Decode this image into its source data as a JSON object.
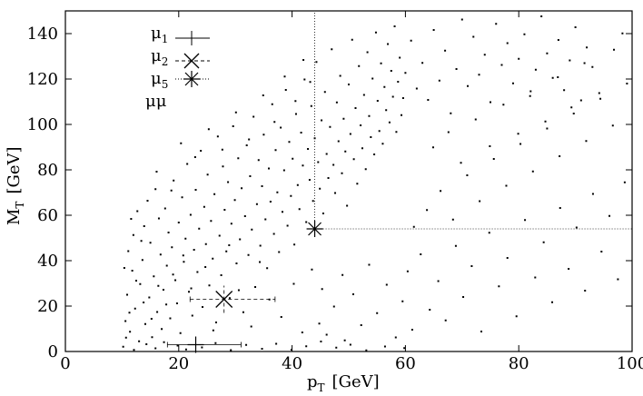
{
  "chart_data": {
    "type": "scatter",
    "title": "",
    "xlabel_main": "p",
    "xlabel_sub": "T",
    "xlabel_unit": "[GeV]",
    "ylabel_main": "M",
    "ylabel_sub": "T",
    "ylabel_unit": "[GeV]",
    "xlim": [
      0,
      100
    ],
    "ylim": [
      0,
      150
    ],
    "xticks": [
      0,
      20,
      40,
      60,
      80,
      100
    ],
    "yticks": [
      0,
      20,
      40,
      60,
      80,
      100,
      120,
      140
    ],
    "grid": false,
    "legend_position": "top-left",
    "legend": [
      {
        "label": "μ",
        "sub": "1",
        "marker": "plus",
        "line": "solid"
      },
      {
        "label": "μ",
        "sub": "2",
        "marker": "cross",
        "line": "dashed"
      },
      {
        "label": "μ",
        "sub": "5",
        "marker": "star",
        "line": "dotted"
      },
      {
        "label": "μμ",
        "sub": "",
        "marker": "dot",
        "line": "none"
      }
    ],
    "highlighted_points": [
      {
        "series": "μ1",
        "x": 23,
        "y": 3,
        "xerr": [
          18,
          31
        ],
        "yerr": [
          1,
          6
        ],
        "marker": "plus",
        "line": "solid"
      },
      {
        "series": "μ2",
        "x": 28,
        "y": 23,
        "xerr": [
          22,
          37
        ],
        "yerr": [
          17,
          29
        ],
        "marker": "cross",
        "line": "dashed"
      },
      {
        "series": "μ5",
        "x": 44,
        "y": 54,
        "xerr": [
          44,
          100
        ],
        "yerr": [
          54,
          150
        ],
        "marker": "star",
        "line": "dotted"
      }
    ],
    "scatter_points": [
      [
        10.2,
        2.1
      ],
      [
        10.6,
        13.4
      ],
      [
        10.9,
        25.0
      ],
      [
        11.1,
        44.2
      ],
      [
        11.4,
        8.7
      ],
      [
        11.8,
        35.6
      ],
      [
        12.0,
        51.3
      ],
      [
        12.3,
        18.9
      ],
      [
        12.7,
        61.8
      ],
      [
        13.0,
        4.5
      ],
      [
        13.2,
        29.7
      ],
      [
        13.6,
        40.3
      ],
      [
        13.9,
        55.2
      ],
      [
        14.1,
        12.1
      ],
      [
        14.5,
        66.4
      ],
      [
        14.8,
        23.8
      ],
      [
        15.0,
        47.9
      ],
      [
        15.3,
        6.3
      ],
      [
        15.6,
        33.1
      ],
      [
        15.9,
        71.5
      ],
      [
        16.2,
        17.4
      ],
      [
        16.5,
        58.6
      ],
      [
        16.8,
        42.7
      ],
      [
        17.0,
        9.9
      ],
      [
        17.3,
        27.2
      ],
      [
        17.6,
        63.0
      ],
      [
        17.9,
        37.8
      ],
      [
        18.2,
        52.4
      ],
      [
        18.5,
        14.6
      ],
      [
        18.8,
        45.9
      ],
      [
        19.1,
        75.3
      ],
      [
        19.4,
        31.4
      ],
      [
        19.7,
        21.2
      ],
      [
        20.0,
        56.8
      ],
      [
        20.3,
        8.1
      ],
      [
        20.6,
        67.9
      ],
      [
        20.9,
        39.5
      ],
      [
        21.2,
        49.7
      ],
      [
        21.5,
        82.6
      ],
      [
        21.8,
        26.3
      ],
      [
        22.1,
        60.2
      ],
      [
        22.4,
        15.8
      ],
      [
        22.7,
        44.8
      ],
      [
        23.0,
        71.2
      ],
      [
        23.3,
        35.0
      ],
      [
        23.6,
        54.1
      ],
      [
        23.9,
        88.4
      ],
      [
        24.2,
        19.6
      ],
      [
        24.5,
        63.7
      ],
      [
        24.8,
        47.3
      ],
      [
        25.1,
        77.9
      ],
      [
        25.4,
        29.1
      ],
      [
        25.7,
        57.5
      ],
      [
        26.0,
        40.9
      ],
      [
        26.3,
        69.3
      ],
      [
        26.6,
        12.8
      ],
      [
        26.9,
        94.7
      ],
      [
        27.2,
        51.0
      ],
      [
        27.5,
        33.6
      ],
      [
        27.8,
        81.5
      ],
      [
        28.1,
        62.4
      ],
      [
        28.4,
        44.1
      ],
      [
        28.7,
        74.6
      ],
      [
        29.0,
        23.5
      ],
      [
        29.3,
        56.3
      ],
      [
        29.6,
        99.2
      ],
      [
        29.9,
        66.7
      ],
      [
        30.2,
        38.8
      ],
      [
        30.5,
        85.1
      ],
      [
        30.8,
        49.4
      ],
      [
        31.1,
        71.9
      ],
      [
        31.4,
        17.3
      ],
      [
        31.7,
        59.6
      ],
      [
        32.0,
        90.8
      ],
      [
        32.3,
        42.5
      ],
      [
        32.6,
        77.2
      ],
      [
        32.9,
        53.7
      ],
      [
        33.2,
        103.4
      ],
      [
        33.5,
        28.4
      ],
      [
        33.8,
        64.9
      ],
      [
        34.1,
        84.3
      ],
      [
        34.4,
        46.6
      ],
      [
        34.7,
        72.8
      ],
      [
        35.0,
        95.5
      ],
      [
        35.3,
        58.2
      ],
      [
        35.6,
        36.7
      ],
      [
        35.9,
        80.6
      ],
      [
        36.2,
        66.0
      ],
      [
        36.5,
        108.9
      ],
      [
        36.8,
        51.8
      ],
      [
        37.1,
        88.7
      ],
      [
        37.4,
        70.1
      ],
      [
        37.7,
        43.8
      ],
      [
        38.0,
        98.6
      ],
      [
        38.3,
        61.5
      ],
      [
        38.6,
        79.8
      ],
      [
        38.9,
        115.2
      ],
      [
        39.2,
        55.4
      ],
      [
        39.5,
        92.3
      ],
      [
        39.8,
        68.5
      ],
      [
        40.1,
        84.9
      ],
      [
        40.4,
        47.1
      ],
      [
        40.7,
        104.6
      ],
      [
        41.0,
        73.3
      ],
      [
        41.3,
        62.7
      ],
      [
        41.6,
        96.4
      ],
      [
        41.9,
        81.9
      ],
      [
        42.2,
        119.8
      ],
      [
        42.5,
        57.0
      ],
      [
        42.8,
        89.2
      ],
      [
        43.1,
        75.6
      ],
      [
        43.4,
        108.1
      ],
      [
        43.7,
        66.3
      ],
      [
        44.0,
        93.9
      ],
      [
        44.3,
        127.5
      ],
      [
        44.6,
        83.4
      ],
      [
        44.9,
        71.7
      ],
      [
        45.2,
        101.8
      ],
      [
        45.5,
        60.8
      ],
      [
        45.8,
        114.3
      ],
      [
        46.1,
        87.0
      ],
      [
        46.4,
        76.4
      ],
      [
        46.7,
        98.9
      ],
      [
        47.0,
        133.1
      ],
      [
        47.3,
        82.2
      ],
      [
        47.6,
        69.8
      ],
      [
        47.9,
        109.7
      ],
      [
        48.2,
        92.6
      ],
      [
        48.5,
        121.4
      ],
      [
        48.8,
        78.5
      ],
      [
        49.1,
        102.5
      ],
      [
        49.4,
        88.1
      ],
      [
        49.7,
        64.2
      ],
      [
        50.0,
        117.6
      ],
      [
        50.3,
        95.8
      ],
      [
        50.6,
        137.3
      ],
      [
        50.9,
        84.7
      ],
      [
        51.2,
        107.2
      ],
      [
        51.5,
        73.9
      ],
      [
        51.8,
        125.7
      ],
      [
        52.1,
        99.6
      ],
      [
        52.4,
        89.5
      ],
      [
        52.7,
        113.0
      ],
      [
        53.0,
        80.3
      ],
      [
        53.3,
        131.8
      ],
      [
        53.6,
        103.7
      ],
      [
        53.9,
        94.4
      ],
      [
        54.2,
        120.2
      ],
      [
        54.5,
        86.8
      ],
      [
        54.8,
        140.5
      ],
      [
        55.1,
        110.4
      ],
      [
        55.4,
        97.1
      ],
      [
        55.7,
        126.9
      ],
      [
        56.0,
        91.5
      ],
      [
        56.3,
        116.5
      ],
      [
        56.6,
        106.3
      ],
      [
        56.9,
        135.4
      ],
      [
        57.2,
        100.9
      ],
      [
        57.5,
        123.6
      ],
      [
        57.8,
        112.2
      ],
      [
        58.1,
        143.2
      ],
      [
        58.4,
        96.7
      ],
      [
        58.7,
        118.8
      ],
      [
        59.0,
        129.4
      ],
      [
        59.3,
        104.1
      ],
      [
        59.6,
        111.6
      ],
      [
        60.0,
        122.7
      ],
      [
        61.0,
        136.9
      ],
      [
        62.0,
        115.8
      ],
      [
        63.0,
        127.1
      ],
      [
        64.0,
        110.8
      ],
      [
        65.0,
        141.6
      ],
      [
        66.0,
        119.3
      ],
      [
        67.0,
        132.5
      ],
      [
        68.0,
        104.9
      ],
      [
        69.0,
        124.4
      ],
      [
        70.0,
        146.2
      ],
      [
        71.0,
        116.9
      ],
      [
        72.0,
        138.6
      ],
      [
        73.0,
        121.9
      ],
      [
        74.0,
        130.7
      ],
      [
        75.0,
        109.8
      ],
      [
        76.0,
        144.3
      ],
      [
        77.0,
        126.2
      ],
      [
        78.0,
        135.8
      ],
      [
        79.0,
        118.1
      ],
      [
        80.0,
        128.9
      ],
      [
        81.0,
        139.7
      ],
      [
        82.0,
        112.5
      ],
      [
        83.0,
        124.1
      ],
      [
        84.0,
        147.6
      ],
      [
        85.0,
        131.3
      ],
      [
        86.0,
        120.5
      ],
      [
        87.0,
        137.2
      ],
      [
        88.0,
        115.1
      ],
      [
        89.0,
        128.2
      ],
      [
        90.0,
        142.8
      ],
      [
        91.0,
        110.6
      ],
      [
        92.0,
        133.9
      ],
      [
        93.0,
        125.3
      ],
      [
        14.3,
        3.2
      ],
      [
        15.9,
        1.4
      ],
      [
        17.4,
        4.1
      ],
      [
        19.8,
        2.6
      ],
      [
        21.3,
        0.9
      ],
      [
        24.1,
        1.8
      ],
      [
        26.5,
        3.7
      ],
      [
        29.2,
        0.6
      ],
      [
        31.9,
        2.9
      ],
      [
        34.7,
        1.2
      ],
      [
        37.2,
        3.4
      ],
      [
        39.9,
        0.8
      ],
      [
        42.5,
        2.3
      ],
      [
        45.1,
        4.4
      ],
      [
        47.8,
        1.7
      ],
      [
        50.3,
        3.0
      ],
      [
        53.1,
        0.5
      ],
      [
        56.4,
        2.2
      ],
      [
        59.8,
        1.5
      ],
      [
        12.1,
        0.7
      ],
      [
        44.8,
        12.3
      ],
      [
        45.3,
        27.5
      ],
      [
        46.1,
        7.4
      ],
      [
        47.4,
        19.8
      ],
      [
        48.9,
        33.7
      ],
      [
        49.3,
        4.9
      ],
      [
        50.8,
        25.2
      ],
      [
        52.2,
        11.6
      ],
      [
        53.6,
        38.2
      ],
      [
        55.0,
        16.9
      ],
      [
        56.7,
        29.4
      ],
      [
        58.3,
        6.2
      ],
      [
        59.5,
        22.1
      ],
      [
        60.4,
        35.3
      ],
      [
        61.2,
        9.6
      ],
      [
        62.7,
        42.8
      ],
      [
        64.3,
        18.4
      ],
      [
        65.8,
        31.0
      ],
      [
        67.1,
        13.7
      ],
      [
        68.9,
        46.5
      ],
      [
        70.2,
        24.0
      ],
      [
        71.7,
        37.6
      ],
      [
        73.4,
        8.8
      ],
      [
        74.8,
        52.3
      ],
      [
        76.5,
        28.7
      ],
      [
        78.0,
        41.2
      ],
      [
        79.6,
        15.5
      ],
      [
        81.1,
        57.9
      ],
      [
        82.9,
        32.6
      ],
      [
        84.4,
        48.1
      ],
      [
        85.9,
        21.7
      ],
      [
        87.3,
        63.2
      ],
      [
        88.8,
        36.4
      ],
      [
        90.2,
        54.6
      ],
      [
        91.7,
        26.8
      ],
      [
        93.1,
        69.4
      ],
      [
        94.6,
        44.0
      ],
      [
        96.0,
        59.7
      ],
      [
        97.5,
        31.8
      ],
      [
        98.7,
        74.5
      ],
      [
        61.5,
        54.9
      ],
      [
        63.8,
        62.3
      ],
      [
        66.2,
        70.7
      ],
      [
        68.4,
        58.1
      ],
      [
        70.9,
        77.6
      ],
      [
        73.1,
        66.2
      ],
      [
        75.6,
        84.8
      ],
      [
        77.8,
        73.0
      ],
      [
        80.3,
        91.4
      ],
      [
        82.5,
        79.3
      ],
      [
        85.0,
        98.2
      ],
      [
        87.2,
        86.0
      ],
      [
        89.7,
        104.8
      ],
      [
        91.9,
        92.7
      ],
      [
        94.4,
        111.3
      ],
      [
        96.6,
        99.5
      ],
      [
        99.1,
        118.0
      ],
      [
        64.9,
        89.9
      ],
      [
        67.6,
        96.6
      ],
      [
        69.8,
        83.1
      ],
      [
        72.4,
        102.2
      ],
      [
        74.9,
        90.4
      ],
      [
        77.3,
        108.7
      ],
      [
        79.9,
        95.9
      ],
      [
        82.1,
        114.6
      ],
      [
        84.7,
        101.3
      ],
      [
        86.9,
        120.8
      ],
      [
        89.3,
        107.5
      ],
      [
        91.6,
        127.0
      ],
      [
        94.2,
        113.8
      ],
      [
        96.8,
        132.9
      ],
      [
        98.3,
        140.1
      ],
      [
        11.6,
        58.4
      ],
      [
        13.4,
        48.7
      ],
      [
        16.1,
        79.2
      ],
      [
        18.7,
        70.9
      ],
      [
        20.4,
        91.7
      ],
      [
        22.9,
        85.6
      ],
      [
        25.3,
        97.9
      ],
      [
        27.7,
        88.9
      ],
      [
        30.1,
        105.3
      ],
      [
        32.4,
        93.4
      ],
      [
        34.9,
        112.8
      ],
      [
        36.9,
        101.1
      ],
      [
        38.7,
        121.1
      ],
      [
        40.6,
        110.3
      ],
      [
        42.0,
        128.4
      ],
      [
        43.2,
        118.7
      ],
      [
        36.0,
        22.9
      ],
      [
        38.1,
        15.2
      ],
      [
        40.3,
        29.8
      ],
      [
        41.8,
        8.4
      ],
      [
        43.5,
        36.1
      ],
      [
        32.8,
        11.0
      ],
      [
        34.3,
        39.4
      ],
      [
        30.6,
        27.0
      ],
      [
        28.9,
        46.8
      ],
      [
        26.1,
        9.3
      ],
      [
        24.7,
        37.2
      ],
      [
        22.2,
        27.8
      ],
      [
        20.8,
        42.3
      ],
      [
        19.0,
        33.9
      ],
      [
        17.8,
        20.7
      ],
      [
        16.4,
        28.9
      ],
      [
        15.2,
        14.4
      ],
      [
        13.8,
        21.6
      ],
      [
        12.5,
        31.2
      ],
      [
        11.3,
        17.1
      ],
      [
        10.4,
        36.8
      ],
      [
        10.7,
        6.1
      ]
    ]
  }
}
